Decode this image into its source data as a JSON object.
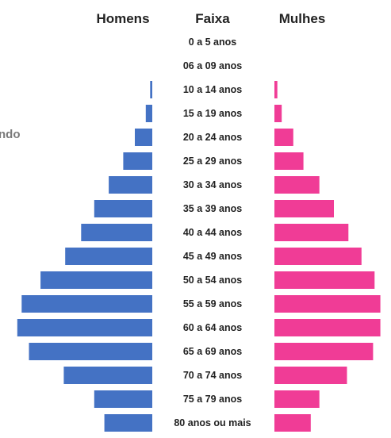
{
  "chart_data": {
    "type": "bar",
    "orientation": "horizontal",
    "layout": "population-pyramid",
    "headers": {
      "left": "Homens",
      "center": "Faixa",
      "right": "Mulhes"
    },
    "cut_off_label": "ndo",
    "categories": [
      "0 a 5 anos",
      "06 a 09 anos",
      "10 a 14 anos",
      "15 a 19 anos",
      "20 a 24 anos",
      "25 a 29 anos",
      "30 a 34 anos",
      "35 a 39 anos",
      "40 a 44 anos",
      "45 a 49 anos",
      "50 a 54 anos",
      "55 a 59 anos",
      "60 a 64 anos",
      "65 a 69 anos",
      "70 a 74 anos",
      "75 a 79 anos",
      "80 anos ou mais"
    ],
    "series": [
      {
        "name": "Homens",
        "side": "left",
        "color": "#4472c4",
        "values": [
          0,
          0,
          1.5,
          4.5,
          12,
          20,
          30,
          40,
          49,
          60,
          77,
          90,
          93,
          85,
          61,
          40,
          33
        ]
      },
      {
        "name": "Mulhes",
        "side": "right",
        "color": "#f03c96",
        "values": [
          0,
          0,
          2,
          5,
          13,
          20,
          31,
          41,
          51,
          60,
          69,
          73,
          73,
          68,
          50,
          31,
          25
        ]
      }
    ],
    "value_axis": {
      "shown": false,
      "range": [
        0,
        100
      ]
    },
    "grid": false,
    "legend": "none"
  }
}
